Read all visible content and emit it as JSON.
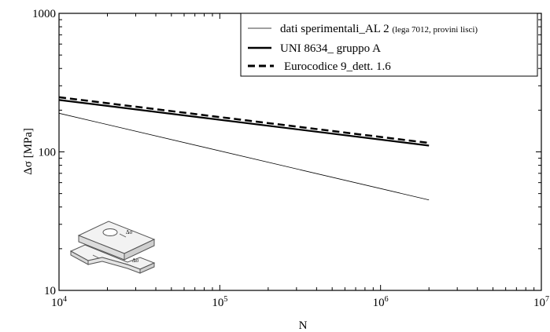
{
  "chart_data": {
    "type": "line",
    "x_scale": "log",
    "y_scale": "log",
    "xlabel": "N",
    "ylabel": "Δσ [MPa]",
    "xlim": [
      10000,
      10000000
    ],
    "ylim": [
      10,
      1000
    ],
    "x_ticks": [
      {
        "value": 10000,
        "base": "10",
        "exp": "4"
      },
      {
        "value": 100000,
        "base": "10",
        "exp": "5"
      },
      {
        "value": 1000000,
        "base": "10",
        "exp": "6"
      },
      {
        "value": 10000000,
        "base": "10",
        "exp": "7"
      }
    ],
    "y_ticks": [
      {
        "value": 10,
        "label": "10"
      },
      {
        "value": 100,
        "label": "100"
      },
      {
        "value": 1000,
        "label": "1000"
      }
    ],
    "grid": false,
    "legend_position": "top-right",
    "series": [
      {
        "name": "dati sperimentali_AL 2",
        "name_note": "(lega 7012, provini lisci)",
        "style": "thin",
        "x": [
          10000,
          2000000
        ],
        "y": [
          190,
          45
        ]
      },
      {
        "name": "UNI 8634_ gruppo A",
        "style": "thick",
        "x": [
          10000,
          2000000
        ],
        "y": [
          237,
          111
        ]
      },
      {
        "name": "Eurocodice 9_dett. 1.6",
        "style": "dashed",
        "x": [
          10000,
          2000000
        ],
        "y": [
          248,
          116
        ]
      }
    ],
    "inset_labels": [
      "Δσ",
      "Δσ"
    ]
  }
}
